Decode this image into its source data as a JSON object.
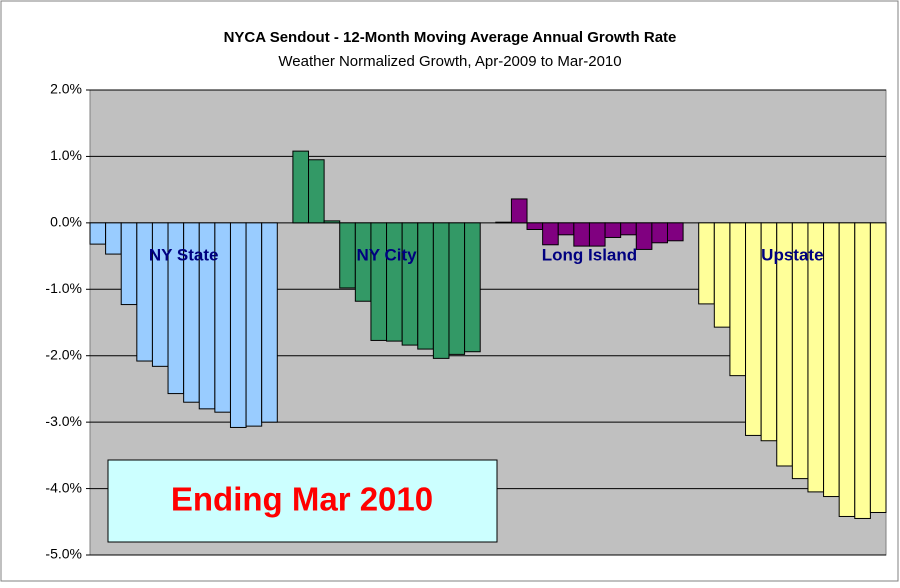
{
  "chart_data": {
    "type": "bar",
    "title": "NYCA Sendout - 12-Month Moving Average Annual Growth Rate",
    "subtitle": "Weather Normalized Growth, Apr-2009 to Mar-2010",
    "annotation": "Ending Mar 2010",
    "ylim": [
      -5,
      2
    ],
    "yticks": [
      {
        "value": 2,
        "label": "2.0%"
      },
      {
        "value": 1,
        "label": "1.0%"
      },
      {
        "value": 0,
        "label": "0.0%"
      },
      {
        "value": -1,
        "label": "-1.0%"
      },
      {
        "value": -2,
        "label": "-2.0%"
      },
      {
        "value": -3,
        "label": "-3.0%"
      },
      {
        "value": -4,
        "label": "-4.0%"
      },
      {
        "value": -5,
        "label": "-5.0%"
      }
    ],
    "grid": true,
    "series": [
      {
        "name": "NY State",
        "color": "#99ccff",
        "values": [
          -0.32,
          -0.47,
          -1.23,
          -2.08,
          -2.16,
          -2.57,
          -2.7,
          -2.8,
          -2.85,
          -3.08,
          -3.06,
          -3.0
        ]
      },
      {
        "name": "NY City",
        "color": "#339966",
        "values": [
          1.08,
          0.95,
          0.03,
          -0.98,
          -1.18,
          -1.77,
          -1.78,
          -1.84,
          -1.9,
          -2.04,
          -1.98,
          -1.94
        ]
      },
      {
        "name": "Long Island",
        "color": "#800080",
        "values": [
          0.01,
          0.36,
          -0.1,
          -0.33,
          -0.18,
          -0.35,
          -0.35,
          -0.22,
          -0.18,
          -0.4,
          -0.3,
          -0.27
        ]
      },
      {
        "name": "Upstate",
        "color": "#ffff99",
        "values": [
          -1.22,
          -1.57,
          -2.3,
          -3.2,
          -3.28,
          -3.66,
          -3.85,
          -4.05,
          -4.12,
          -4.42,
          -4.45,
          -4.36
        ]
      }
    ]
  }
}
